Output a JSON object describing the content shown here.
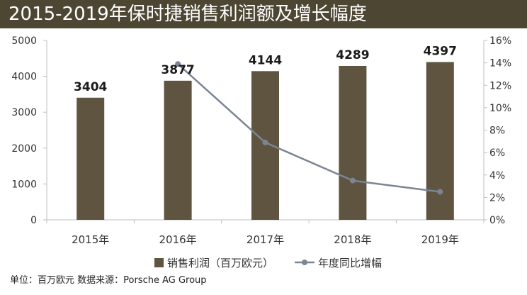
{
  "header": {
    "title": "2015-2019年保时捷销售利润额及增长幅度"
  },
  "footer": {
    "source": "单位：百万欧元  数据来源：Porsche AG Group"
  },
  "colors": {
    "bar": "#5e5440",
    "line": "#7b8593",
    "header_bg": "#4d4633"
  },
  "chart_data": {
    "type": "bar",
    "title": "2015-2019年保时捷销售利润额及增长幅度",
    "categories": [
      "2015年",
      "2016年",
      "2017年",
      "2018年",
      "2019年"
    ],
    "series": [
      {
        "name": "销售利润（百万欧元）",
        "type": "bar",
        "axis": "left",
        "values": [
          3404,
          3877,
          4144,
          4289,
          4397
        ]
      },
      {
        "name": "年度同比增幅",
        "type": "line",
        "axis": "right",
        "points": [
          {
            "x": "2016年",
            "y": 13.9
          },
          {
            "x": "2017年",
            "y": 6.9
          },
          {
            "x": "2018年",
            "y": 3.5
          },
          {
            "x": "2019年",
            "y": 2.5
          }
        ]
      }
    ],
    "y_left": {
      "ylim": [
        0,
        5000
      ],
      "ticks": [
        "0",
        "1000",
        "2000",
        "3000",
        "4000",
        "5000"
      ]
    },
    "y_right": {
      "ylim": [
        0,
        16
      ],
      "ticks": [
        "0%",
        "2%",
        "4%",
        "6%",
        "8%",
        "10%",
        "12%",
        "14%",
        "16%"
      ]
    },
    "data_labels": [
      "3404",
      "3877",
      "4144",
      "4289",
      "4397"
    ],
    "legend": {
      "position": "bottom",
      "items": [
        "销售利润（百万欧元）",
        "年度同比增幅"
      ]
    },
    "grid": false
  }
}
